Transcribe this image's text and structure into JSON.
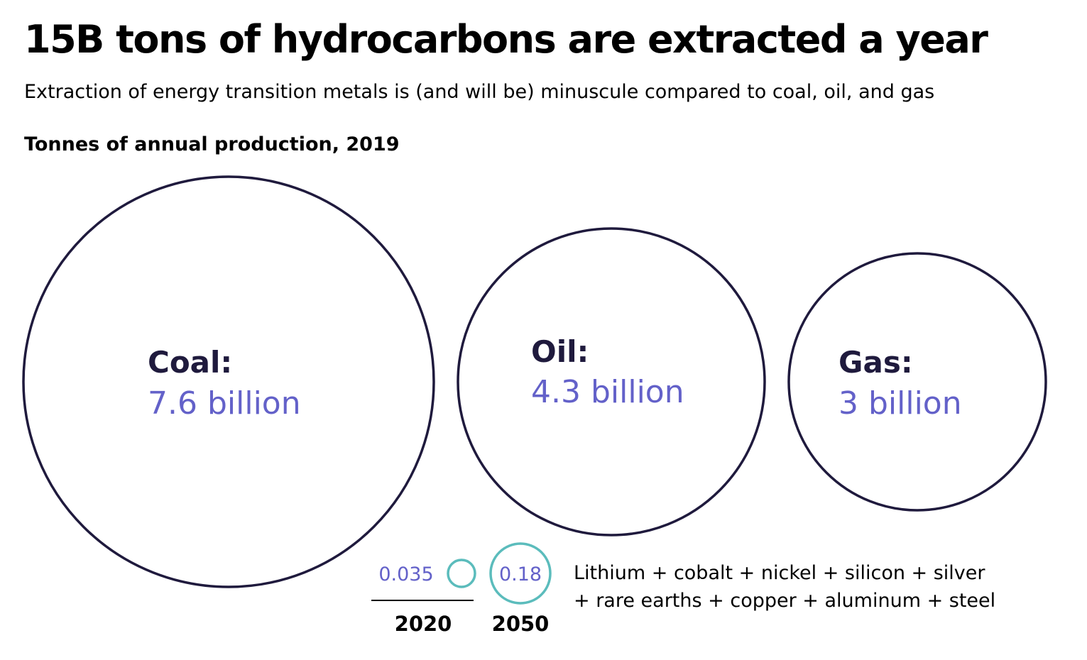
{
  "title": "15B tons of hydrocarbons are extracted a year",
  "subtitle": "Extraction of energy transition metals is (and will be) minuscule compared to coal, oil, and gas",
  "chart_label": "Tonnes of annual production, 2019",
  "colors": {
    "circle_outline": "#1f1a3d",
    "value_text": "#6361c9",
    "metal_circle": "#5bbcbc",
    "name_text": "#1f1a3d"
  },
  "chart_data": {
    "type": "bubble",
    "unit": "tonnes",
    "hydrocarbons": [
      {
        "name": "Coal:",
        "value": 7.6,
        "value_label": "7.6 billion"
      },
      {
        "name": "Oil:",
        "value": 4.3,
        "value_label": "4.3 billion"
      },
      {
        "name": "Gas:",
        "value": 3.0,
        "value_label": "3 billion"
      }
    ],
    "metals": [
      {
        "year": "2020",
        "value": 0.035,
        "value_label": "0.035"
      },
      {
        "year": "2050",
        "value": 0.18,
        "value_label": "0.18"
      }
    ],
    "metals_description": [
      "Lithium + cobalt + nickel + silicon + silver",
      "+ rare earths + copper + aluminum + steel"
    ]
  }
}
